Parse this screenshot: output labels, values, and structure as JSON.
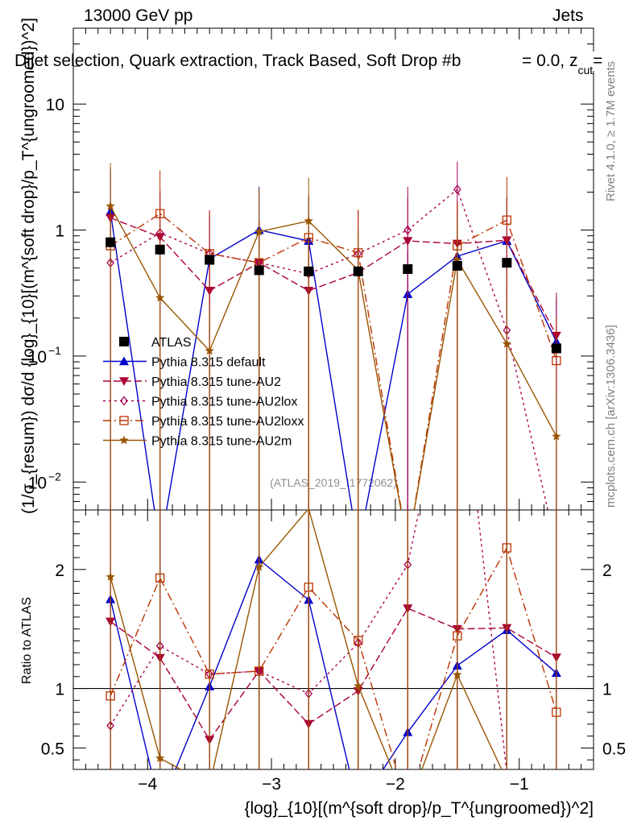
{
  "header": {
    "energy": "13000 GeV pp",
    "category": "Jets",
    "title": "Dijet selection, Quark extraction, Track Based, Soft Drop #b",
    "title_tail": "= 0.0, z",
    "title_tail_sub": "cut",
    "title_tail_end": "="
  },
  "side_labels": {
    "rivet": "Rivet 4.1.0, ≥ 1.7M events",
    "mcplots": "mcplots.cern.ch [arXiv:1306.3436]"
  },
  "watermark": "(ATLAS_2019_I1772062)",
  "chart_data": {
    "type": "line",
    "top_panel": {
      "ylabel": "(1/σ_{resum}) dσ/d {log}_{10}[(m^{soft drop}/p_T^{ungroomed})^2]",
      "yscale": "log",
      "ylim": [
        0.006,
        40
      ],
      "yticks": [
        {
          "value": 0.01,
          "label": "10",
          "exp": "−2"
        },
        {
          "value": 0.1,
          "label": "10",
          "exp": "−1"
        },
        {
          "value": 1,
          "label": "1"
        },
        {
          "value": 10,
          "label": "10"
        }
      ]
    },
    "ratio_panel": {
      "ylabel": "Ratio to ATLAS",
      "ylim": [
        0.32,
        2.5
      ],
      "yticks": [
        {
          "value": 0.5,
          "label": "0.5"
        },
        {
          "value": 1,
          "label": "1"
        },
        {
          "value": 2,
          "label": "2"
        }
      ]
    },
    "xlabel": "{log}_{10}[(m^{soft drop}/p_T^{ungroomed})^2]",
    "xlim": [
      -4.6,
      -0.4
    ],
    "xticks": [
      {
        "value": -4,
        "label": "−4"
      },
      {
        "value": -3,
        "label": "−3"
      },
      {
        "value": -2,
        "label": "−2"
      },
      {
        "value": -1,
        "label": "−1"
      }
    ],
    "x": [
      -4.3,
      -3.9,
      -3.5,
      -3.1,
      -2.7,
      -2.3,
      -1.9,
      -1.5,
      -1.1,
      -0.7
    ],
    "data": {
      "name": "ATLAS",
      "values": [
        0.8,
        0.7,
        0.58,
        0.48,
        0.47,
        0.47,
        0.49,
        0.52,
        0.55,
        0.115
      ]
    },
    "series": [
      {
        "name": "Pythia 8.315 default",
        "color": "#0000cc",
        "dash": "",
        "marker": "triangle-up",
        "values": [
          1.4,
          0.002,
          0.59,
          1.0,
          0.82,
          0.002,
          0.31,
          0.62,
          0.82,
          0.13
        ]
      },
      {
        "name": "Pythia 8.315 tune-AU2",
        "color": "#aa0033",
        "dash": "9,4",
        "marker": "triangle-down",
        "values": [
          1.25,
          0.88,
          0.33,
          0.55,
          0.33,
          0.46,
          0.82,
          0.78,
          0.83,
          0.145
        ]
      },
      {
        "name": "Pythia 8.315 tune-AU2lox",
        "color": "#aa0055",
        "dash": "3,4",
        "marker": "diamond",
        "values": [
          0.55,
          0.95,
          0.65,
          0.55,
          0.45,
          0.65,
          1.0,
          2.1,
          0.16,
          0.002
        ]
      },
      {
        "name": "Pythia 8.315 tune-AU2loxx",
        "color": "#bb3300",
        "dash": "10,4,2,4",
        "marker": "open-square",
        "values": [
          0.75,
          1.35,
          0.65,
          0.55,
          0.87,
          0.66,
          0.002,
          0.75,
          1.2,
          0.092
        ]
      },
      {
        "name": "Pythia 8.315 tune-AU2m",
        "color": "#995500",
        "dash": "",
        "marker": "star",
        "values": [
          1.55,
          0.29,
          0.11,
          0.97,
          1.18,
          0.48,
          0.002,
          0.58,
          0.125,
          0.023
        ]
      }
    ]
  }
}
